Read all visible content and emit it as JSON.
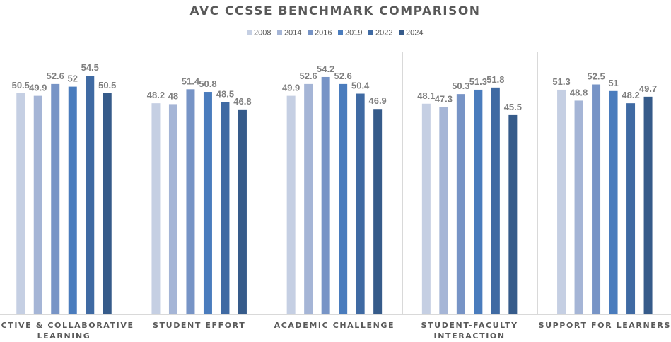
{
  "chart_data": {
    "type": "bar",
    "title": "AVC CCSSE BENCHMARK COMPARISON",
    "categories": [
      [
        "ACTIVE & COLLABORATIVE",
        "LEARNING"
      ],
      [
        "STUDENT EFFORT"
      ],
      [
        "ACADEMIC CHALLENGE"
      ],
      [
        "STUDENT-FACULTY",
        "INTERACTION"
      ],
      [
        "SUPPORT FOR LEARNERS"
      ]
    ],
    "series": [
      {
        "name": "2008",
        "color": "#c5cfe3",
        "values": [
          50.5,
          48.2,
          49.9,
          48.1,
          51.3
        ]
      },
      {
        "name": "2014",
        "color": "#a5b5d6",
        "values": [
          49.9,
          48,
          52.6,
          47.3,
          48.8
        ]
      },
      {
        "name": "2016",
        "color": "#7794c6",
        "values": [
          52.6,
          51.4,
          54.2,
          50.3,
          52.5
        ]
      },
      {
        "name": "2019",
        "color": "#4a7cbd",
        "values": [
          52,
          50.8,
          52.6,
          51.3,
          51
        ]
      },
      {
        "name": "2022",
        "color": "#3f6aa3",
        "values": [
          54.5,
          48.5,
          50.4,
          51.8,
          48.2
        ]
      },
      {
        "name": "2024",
        "color": "#365b8a",
        "values": [
          50.5,
          46.8,
          46.9,
          45.5,
          49.7
        ]
      }
    ],
    "xlabel": "",
    "ylabel": "",
    "ylim": [
      0,
      60
    ],
    "legend": "top-center",
    "grid": false,
    "data_labels": true
  }
}
